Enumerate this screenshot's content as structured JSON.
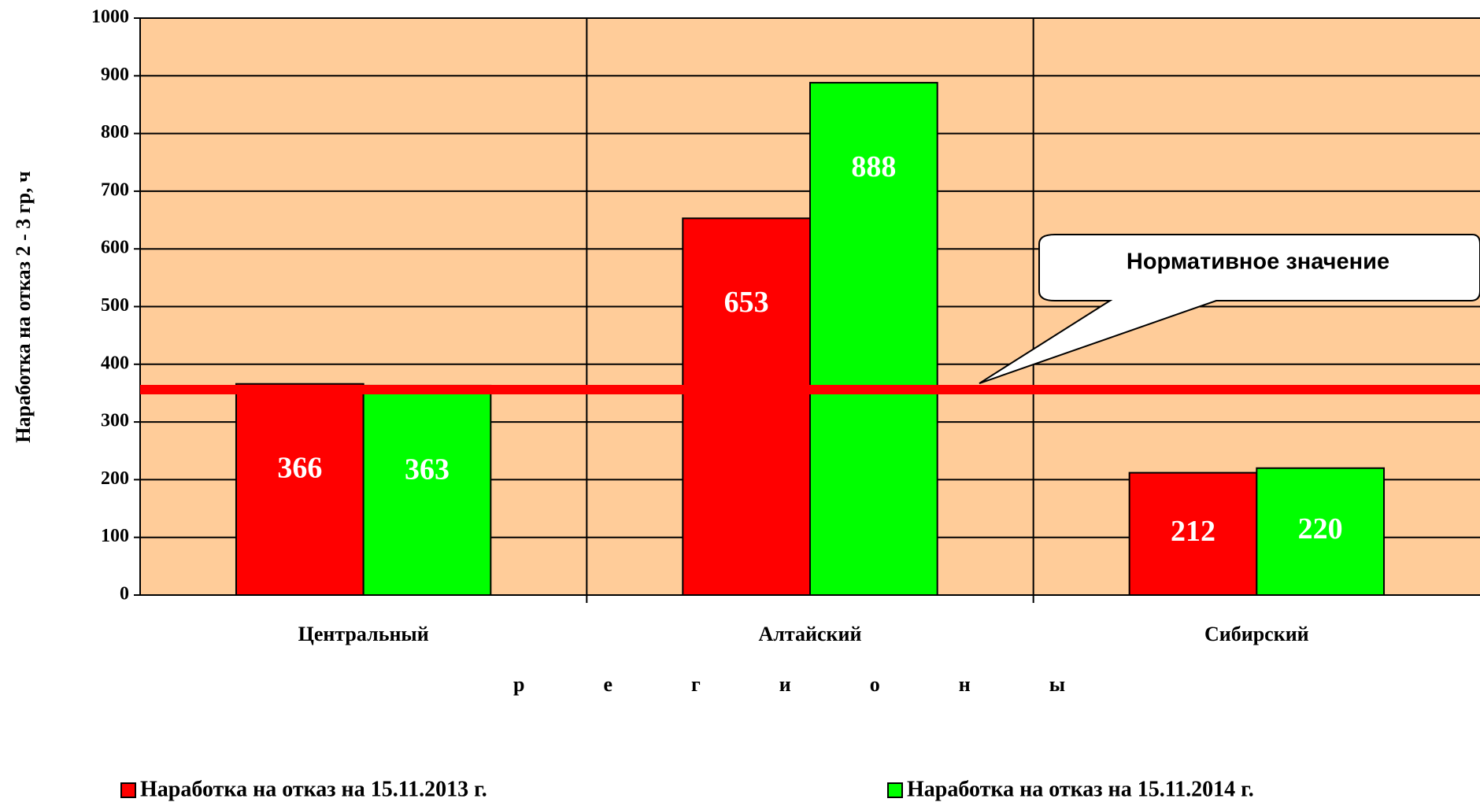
{
  "chart_data": {
    "type": "bar",
    "categories": [
      "Центральный",
      "Алтайский",
      "Сибирский"
    ],
    "series": [
      {
        "name": "Наработка на отказ на 15.11.2013 г.",
        "color": "#ff0000",
        "values": [
          366,
          653,
          212
        ]
      },
      {
        "name": "Наработка на отказ на 15.11.2014 г.",
        "color": "#00ff00",
        "values": [
          363,
          888,
          220
        ]
      }
    ],
    "y_label": "Наработка на отказ 2 - 3 гр, ч",
    "x_label": "регионы",
    "ylim": [
      0,
      1000
    ],
    "yticks": [
      0,
      100,
      200,
      300,
      400,
      500,
      600,
      700,
      800,
      900,
      1000
    ],
    "grid": true,
    "reference_line": {
      "value": 356,
      "label": "Нормативное значение",
      "color": "#ff0000"
    },
    "legend": "bottom"
  }
}
